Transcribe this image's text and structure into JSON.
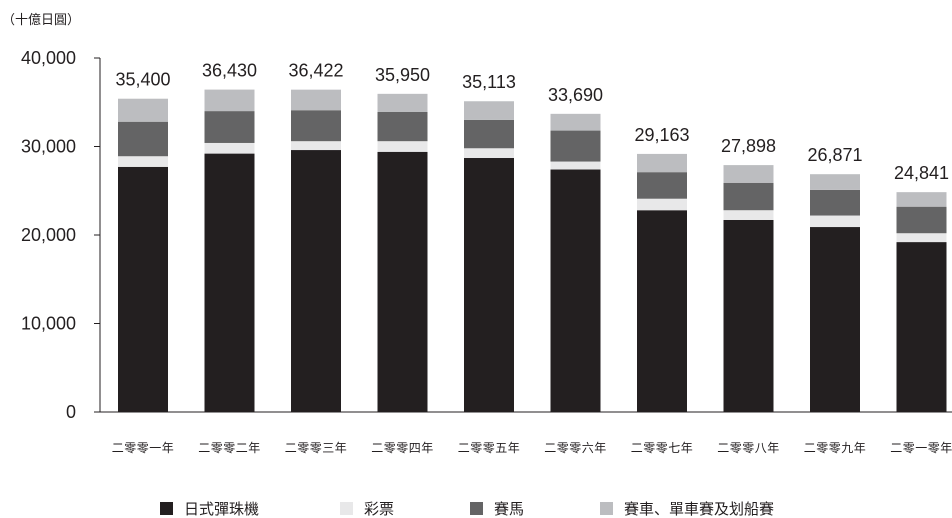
{
  "chart_data": {
    "type": "bar",
    "stacked": true,
    "unit_label": "（十億日圓）",
    "categories": [
      "二零零一年",
      "二零零二年",
      "二零零三年",
      "二零零四年",
      "二零零五年",
      "二零零六年",
      "二零零七年",
      "二零零八年",
      "二零零九年",
      "二零一零年"
    ],
    "totals": [
      "35,400",
      "36,430",
      "36,422",
      "35,950",
      "35,113",
      "33,690",
      "29,163",
      "27,898",
      "26,871",
      "24,841"
    ],
    "series": [
      {
        "name": "日式彈珠機",
        "color": "#231f20",
        "values": [
          27700,
          29200,
          29600,
          29400,
          28700,
          27400,
          22800,
          21700,
          20900,
          19200
        ]
      },
      {
        "name": "彩票",
        "color": "#e8e8e9",
        "values": [
          1200,
          1200,
          1000,
          1200,
          1100,
          900,
          1300,
          1100,
          1300,
          1000
        ]
      },
      {
        "name": "賽馬",
        "color": "#646465",
        "values": [
          3900,
          3600,
          3500,
          3300,
          3200,
          3500,
          3000,
          3100,
          2900,
          3000
        ]
      },
      {
        "name": "賽車、單車賽及划船賽",
        "color": "#bcbdc0",
        "values": [
          2600,
          2430,
          2322,
          2050,
          2113,
          1890,
          2063,
          1998,
          1771,
          1641
        ]
      }
    ],
    "ylim": [
      0,
      40000
    ],
    "yticks": [
      0,
      10000,
      20000,
      30000,
      40000
    ],
    "ytick_labels": [
      "0",
      "10,000",
      "20,000",
      "30,000",
      "40,000"
    ],
    "grid": false,
    "legend_position": "bottom"
  }
}
